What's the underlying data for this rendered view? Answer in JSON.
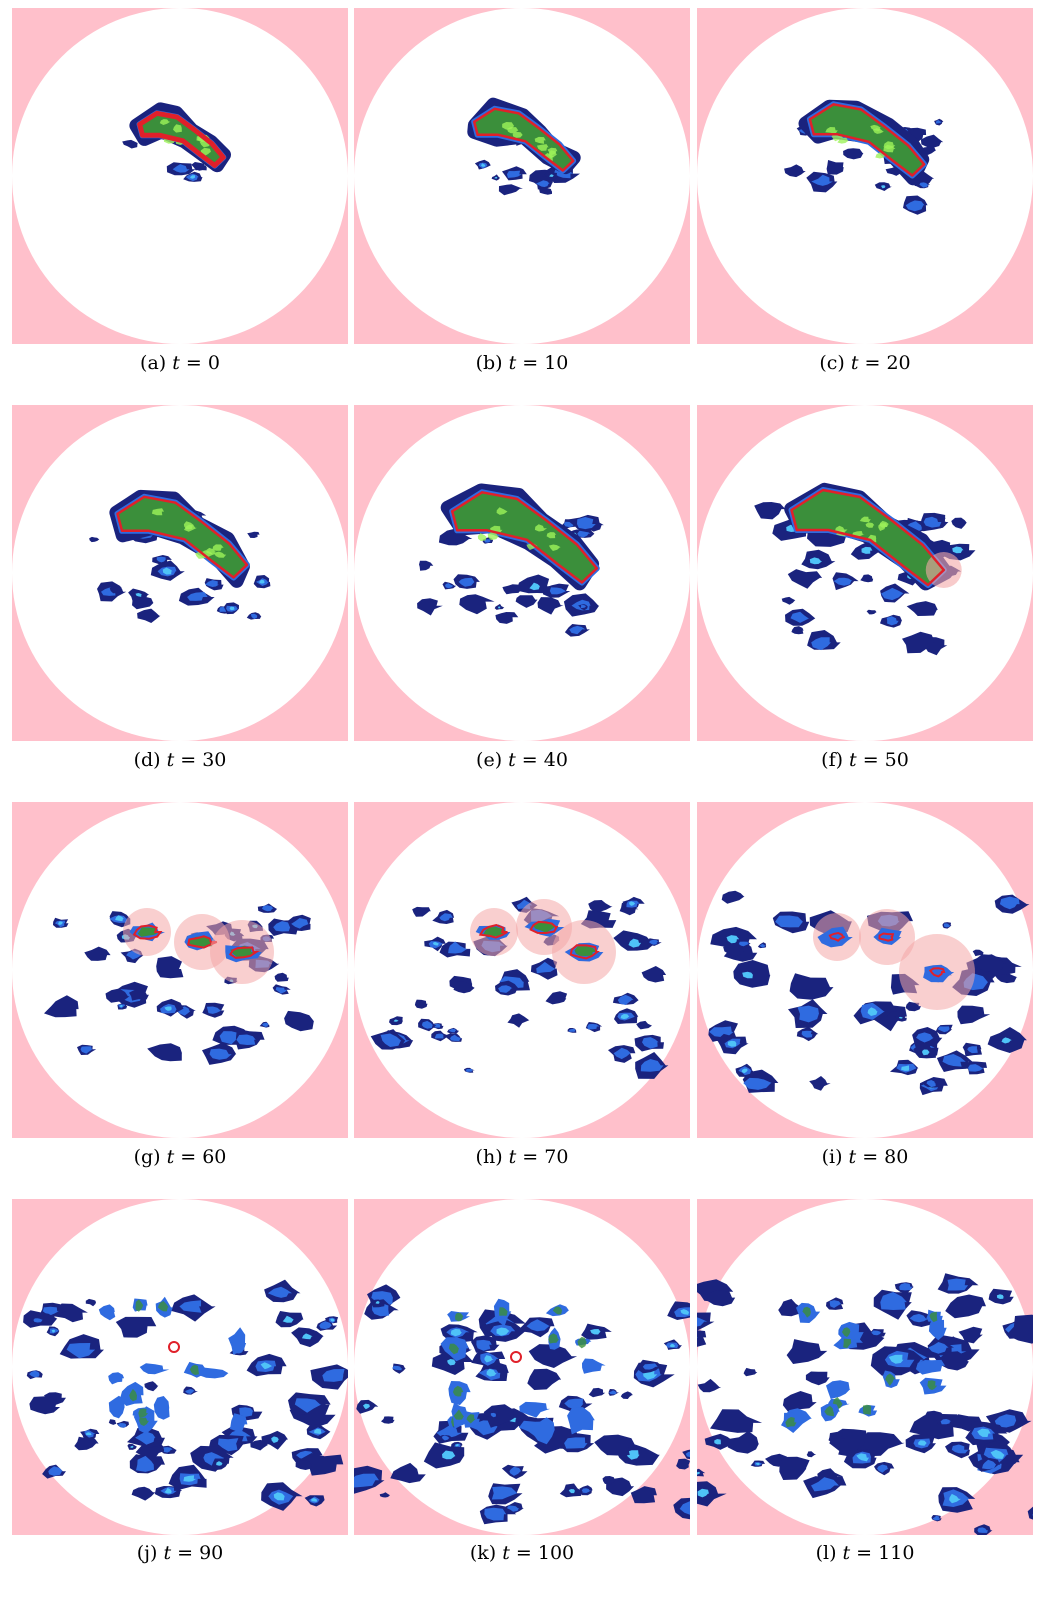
{
  "figure": {
    "panels": [
      {
        "label": "(a)",
        "time": "0",
        "stage": 0
      },
      {
        "label": "(b)",
        "time": "10",
        "stage": 1
      },
      {
        "label": "(c)",
        "time": "20",
        "stage": 2
      },
      {
        "label": "(d)",
        "time": "30",
        "stage": 3
      },
      {
        "label": "(e)",
        "time": "40",
        "stage": 4
      },
      {
        "label": "(f)",
        "time": "50",
        "stage": 5
      },
      {
        "label": "(g)",
        "time": "60",
        "stage": 6
      },
      {
        "label": "(h)",
        "time": "70",
        "stage": 7
      },
      {
        "label": "(i)",
        "time": "80",
        "stage": 8
      },
      {
        "label": "(j)",
        "time": "90",
        "stage": 9
      },
      {
        "label": "(k)",
        "time": "100",
        "stage": 10
      },
      {
        "label": "(l)",
        "time": "110",
        "stage": 11
      }
    ],
    "variable": "t",
    "colors": {
      "corner_mask": "#ffc0cb",
      "background": "#ffffff",
      "cloud_outer": "#1a237e",
      "cloud_mid": "#2f6be0",
      "cloud_inner": "#4fc3f7",
      "cloud_core": "#3b8f3b",
      "cloud_peak": "#9ef25a",
      "contour": "#e0202a",
      "halo": "#f4a8a8"
    }
  }
}
